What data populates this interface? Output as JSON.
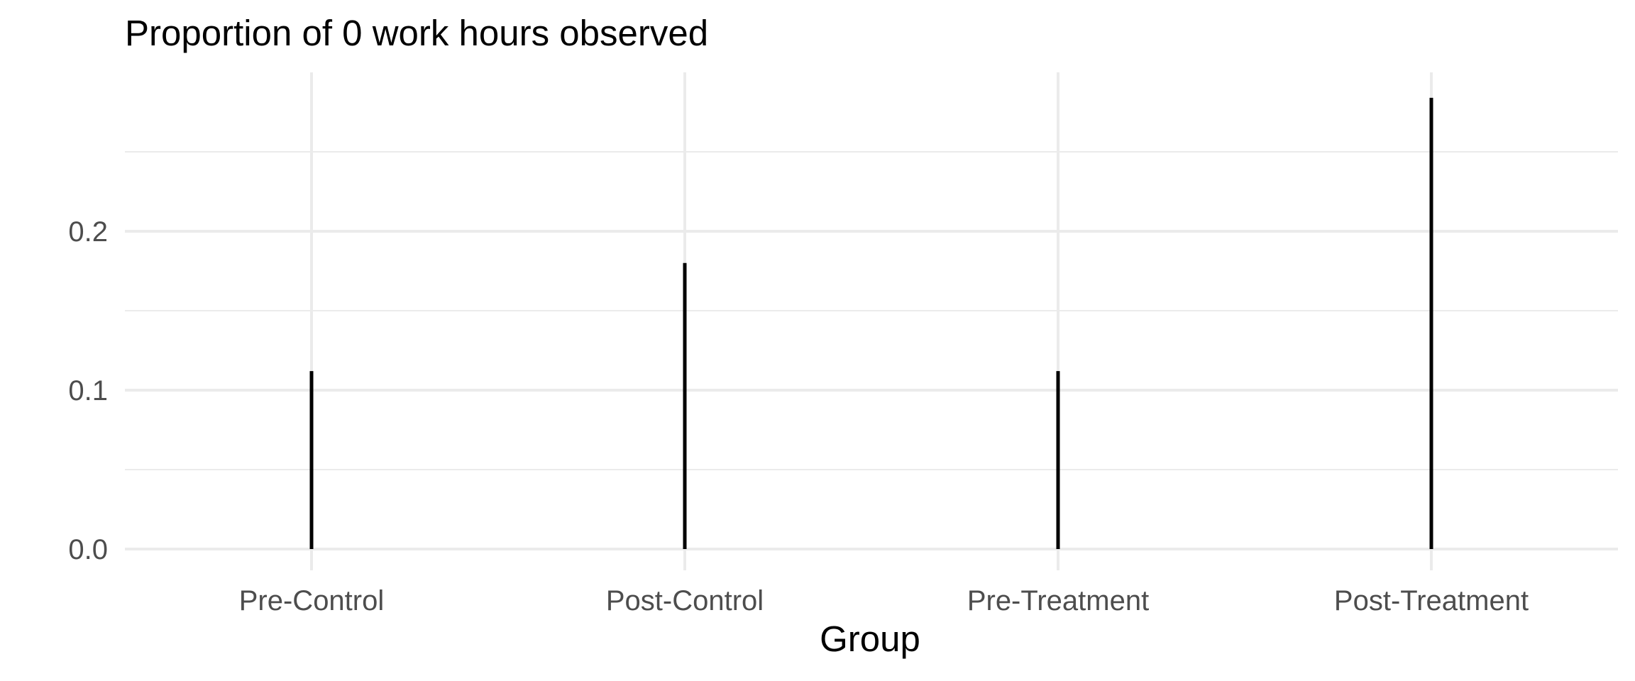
{
  "chart_data": {
    "type": "bar",
    "title": "Proportion of 0 work hours observed",
    "xlabel": "Group",
    "ylabel": "",
    "categories": [
      "Pre-Control",
      "Post-Control",
      "Pre-Treatment",
      "Post-Treatment"
    ],
    "values": [
      0.112,
      0.18,
      0.112,
      0.284
    ],
    "ylim": [
      0,
      0.3
    ],
    "y_ticks": [
      0.0,
      0.1,
      0.2
    ],
    "y_tick_labels": [
      "0.0",
      "0.1",
      "0.2"
    ],
    "grid": true,
    "legend": "none",
    "colors": {
      "bar": "#000000",
      "grid": "#ebebeb",
      "tick_text": "#4d4d4d",
      "title_text": "#000000"
    }
  }
}
